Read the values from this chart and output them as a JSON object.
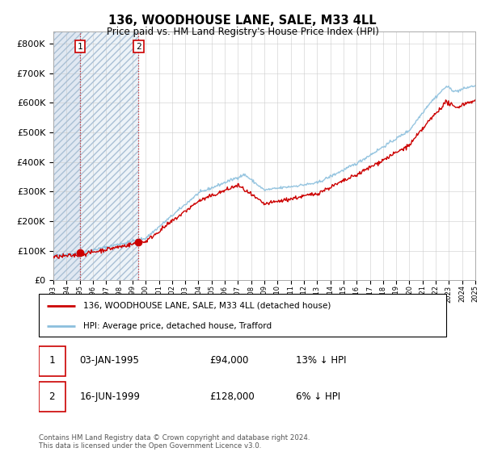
{
  "title": "136, WOODHOUSE LANE, SALE, M33 4LL",
  "subtitle": "Price paid vs. HM Land Registry's House Price Index (HPI)",
  "ylabel_ticks": [
    "£0",
    "£100K",
    "£200K",
    "£300K",
    "£400K",
    "£500K",
    "£600K",
    "£700K",
    "£800K"
  ],
  "ytick_values": [
    0,
    100000,
    200000,
    300000,
    400000,
    500000,
    600000,
    700000,
    800000
  ],
  "ylim": [
    0,
    840000
  ],
  "x_start_year": 1993,
  "x_end_year": 2025,
  "sale1_year": 1995.02,
  "sale1_price": 94000,
  "sale2_year": 1999.46,
  "sale2_price": 128000,
  "hpi_color": "#8bbfdd",
  "price_color": "#cc0000",
  "legend_label1": "136, WOODHOUSE LANE, SALE, M33 4LL (detached house)",
  "legend_label2": "HPI: Average price, detached house, Trafford",
  "note1_num": "1",
  "note1_date": "03-JAN-1995",
  "note1_price": "£94,000",
  "note1_hpi": "13% ↓ HPI",
  "note2_num": "2",
  "note2_date": "16-JUN-1999",
  "note2_price": "£128,000",
  "note2_hpi": "6% ↓ HPI",
  "footnote": "Contains HM Land Registry data © Crown copyright and database right 2024.\nThis data is licensed under the Open Government Licence v3.0."
}
